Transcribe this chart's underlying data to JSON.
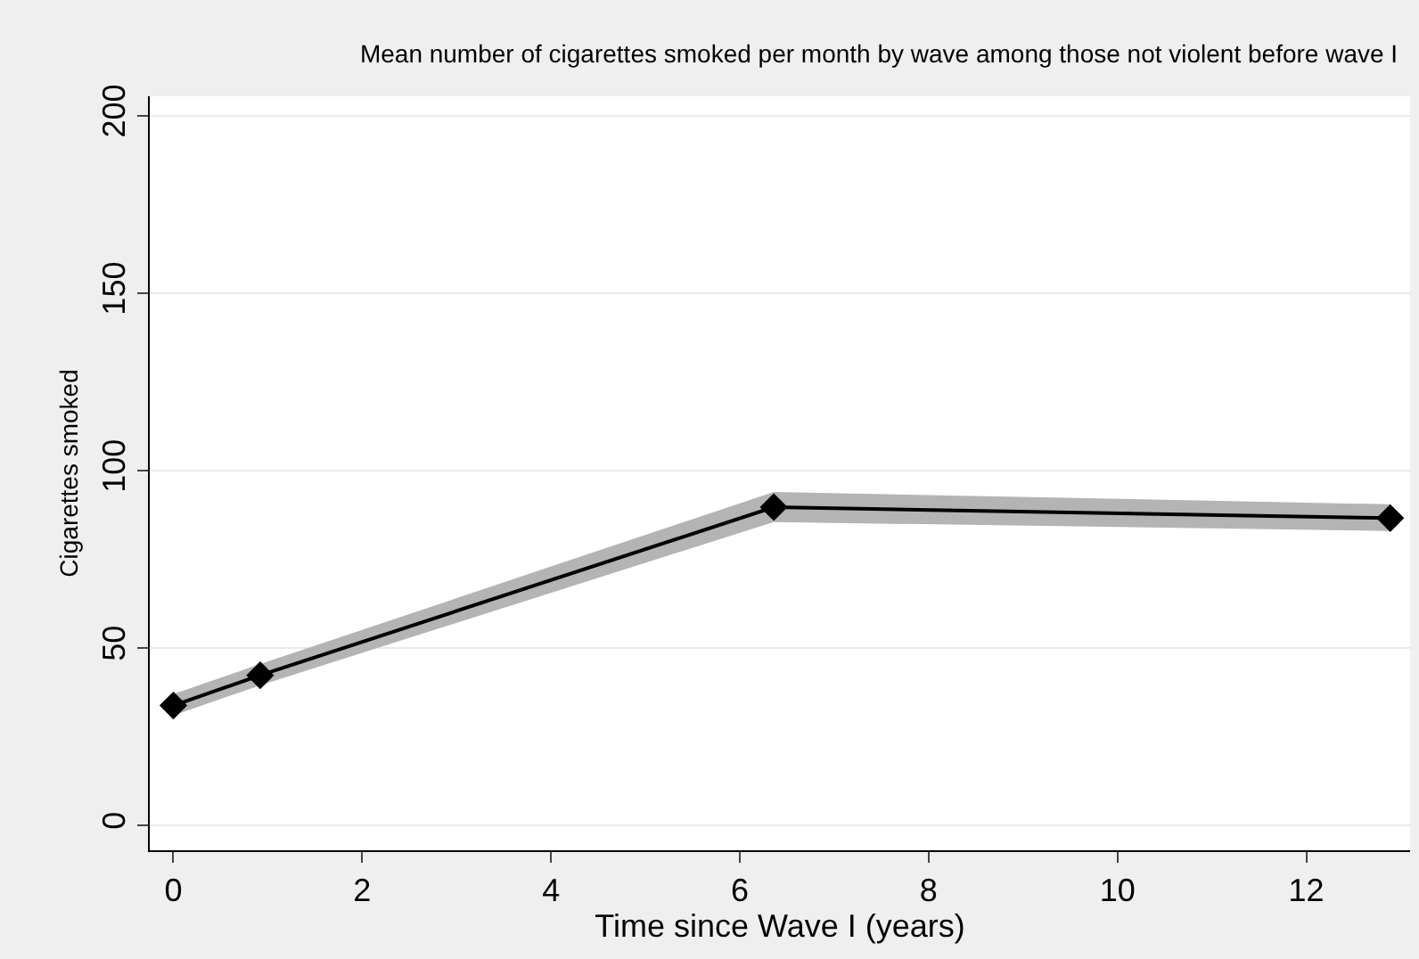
{
  "chart_data": {
    "type": "line",
    "title": "Mean number of cigarettes smoked per month by wave among those not violent before wave I",
    "xlabel": "Time since Wave I (years)",
    "ylabel": "Cigarettes smoked",
    "x": [
      0,
      0.92,
      6.36,
      12.89
    ],
    "series": [
      {
        "color": "#000000",
        "values": [
          33.8,
          42.3,
          89.7,
          86.6
        ],
        "lower": [
          31,
          39.5,
          85.5,
          83
        ],
        "upper": [
          37,
          45.5,
          94,
          90.5
        ]
      }
    ],
    "xlim": [
      -0.25,
      13.1
    ],
    "xticks": [
      0,
      2,
      4,
      6,
      8,
      10,
      12
    ],
    "ylim": [
      -7,
      205.5
    ],
    "yticks": [
      0,
      50,
      100,
      150,
      200
    ],
    "grid": "y",
    "marker": "diamond",
    "line_style": "solid"
  }
}
